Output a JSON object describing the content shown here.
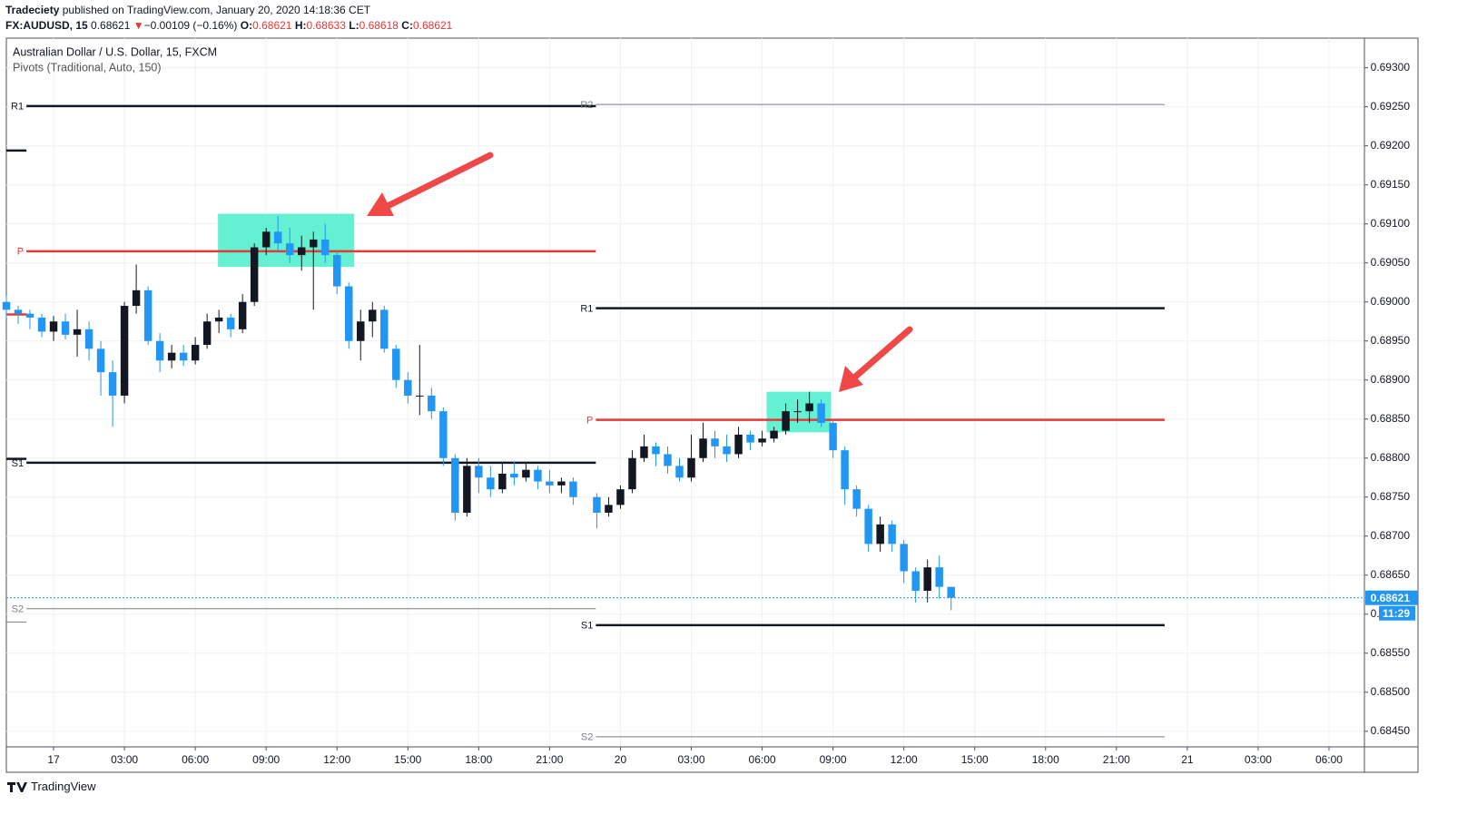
{
  "header": {
    "publisher": "Tradeciety",
    "published": "published on TradingView.com, January 20, 2020 14:18:36 CET",
    "symbol": "FX:AUDUSD, 15",
    "last": "0.68621",
    "arrow": "▼",
    "change": "−0.00109 (−0.16%)",
    "ohlc": [
      {
        "key": "O:",
        "value": "0.68621"
      },
      {
        "key": "H:",
        "value": "0.68633"
      },
      {
        "key": "L:",
        "value": "0.68618"
      },
      {
        "key": "C:",
        "value": "0.68621"
      }
    ]
  },
  "footer": {
    "brand": "TradingView"
  },
  "chart_data": {
    "type": "candlestick",
    "title": "Australian Dollar / U.S. Dollar, 15, FXCM",
    "subtitle": "Pivots (Traditional, Auto, 150)",
    "up_color": "#131722",
    "down_color": "#2196f3",
    "x": [
      -2,
      -1.5,
      -1,
      -0.5,
      0,
      0.5,
      1,
      1.5,
      2,
      2.5,
      3,
      3.5,
      4,
      4.5,
      5,
      5.5,
      6,
      6.5,
      7,
      7.5,
      8,
      8.5,
      9,
      9.5,
      10,
      10.5,
      11,
      11.5,
      12,
      12.5,
      13,
      13.5,
      14,
      14.5,
      15,
      15.5,
      16,
      16.5,
      17,
      17.5,
      18,
      18.5,
      19,
      19.5,
      20,
      20.5,
      21,
      21.5,
      22,
      23,
      23.5,
      24,
      24.5,
      25,
      25.5,
      26,
      26.5,
      27,
      27.5,
      28,
      28.5,
      29,
      29.5,
      30,
      30.5,
      31,
      31.5,
      32,
      32.5,
      33,
      33.5,
      34,
      34.5,
      35,
      35.5,
      36,
      36.5,
      37,
      37.5,
      38
    ],
    "open": [
      0.69,
      0.6899,
      0.68985,
      0.6898,
      0.68962,
      0.68975,
      0.68958,
      0.68965,
      0.6894,
      0.6891,
      0.6888,
      0.68995,
      0.69015,
      0.6895,
      0.68925,
      0.68935,
      0.68925,
      0.68945,
      0.68975,
      0.6898,
      0.68965,
      0.69,
      0.6907,
      0.6909,
      0.69075,
      0.6906,
      0.6907,
      0.6908,
      0.6906,
      0.6902,
      0.6895,
      0.68975,
      0.6899,
      0.6894,
      0.689,
      0.6888,
      0.6888,
      0.6886,
      0.688,
      0.6873,
      0.6879,
      0.68775,
      0.6876,
      0.6878,
      0.68775,
      0.68785,
      0.6877,
      0.68765,
      0.6877,
      0.6875,
      0.6873,
      0.6874,
      0.6876,
      0.688,
      0.68815,
      0.68805,
      0.6879,
      0.68775,
      0.688,
      0.68825,
      0.68815,
      0.68805,
      0.6883,
      0.6882,
      0.68825,
      0.68835,
      0.6886,
      0.6886,
      0.6887,
      0.68845,
      0.6881,
      0.6876,
      0.68735,
      0.6869,
      0.68715,
      0.6869,
      0.68655,
      0.6863,
      0.6866,
      0.68635
    ],
    "high": [
      0.69008,
      0.68995,
      0.6899,
      0.68985,
      0.68982,
      0.68985,
      0.6899,
      0.68975,
      0.6895,
      0.68925,
      0.69,
      0.69048,
      0.6902,
      0.6896,
      0.68945,
      0.68945,
      0.68955,
      0.68985,
      0.6899,
      0.68985,
      0.6901,
      0.69075,
      0.69095,
      0.6911,
      0.69095,
      0.69085,
      0.6909,
      0.691,
      0.69065,
      0.69025,
      0.6899,
      0.69,
      0.68995,
      0.68945,
      0.6891,
      0.68945,
      0.6889,
      0.68865,
      0.68805,
      0.688,
      0.688,
      0.6879,
      0.68795,
      0.68795,
      0.68795,
      0.6879,
      0.68785,
      0.68775,
      0.68775,
      0.68755,
      0.6875,
      0.68765,
      0.6881,
      0.6883,
      0.6882,
      0.68815,
      0.688,
      0.6883,
      0.68845,
      0.68835,
      0.6883,
      0.6884,
      0.68835,
      0.68835,
      0.6884,
      0.6887,
      0.68875,
      0.68885,
      0.68875,
      0.6885,
      0.68815,
      0.68765,
      0.6874,
      0.68725,
      0.6872,
      0.68695,
      0.6866,
      0.6867,
      0.68675,
      0.68633
    ],
    "low": [
      0.6898,
      0.68972,
      0.68965,
      0.68955,
      0.6895,
      0.68952,
      0.6893,
      0.68925,
      0.6888,
      0.6884,
      0.6887,
      0.68985,
      0.68945,
      0.6891,
      0.68915,
      0.68918,
      0.6892,
      0.6894,
      0.6896,
      0.68955,
      0.6896,
      0.68995,
      0.6906,
      0.69065,
      0.6905,
      0.6904,
      0.6899,
      0.6905,
      0.6901,
      0.6894,
      0.68925,
      0.68955,
      0.68935,
      0.6889,
      0.6887,
      0.68855,
      0.6885,
      0.6879,
      0.6872,
      0.68725,
      0.68755,
      0.6875,
      0.68755,
      0.68765,
      0.6877,
      0.6876,
      0.68755,
      0.68755,
      0.6874,
      0.6871,
      0.68725,
      0.68735,
      0.68755,
      0.68795,
      0.6879,
      0.6878,
      0.6877,
      0.6877,
      0.68795,
      0.688,
      0.68795,
      0.688,
      0.6881,
      0.68815,
      0.6882,
      0.6883,
      0.68845,
      0.68845,
      0.6884,
      0.688,
      0.6874,
      0.68725,
      0.6868,
      0.6868,
      0.6868,
      0.6864,
      0.68615,
      0.68615,
      0.6862,
      0.68605
    ],
    "close": [
      0.6899,
      0.68985,
      0.6898,
      0.68962,
      0.68975,
      0.68958,
      0.68965,
      0.6894,
      0.6891,
      0.6888,
      0.68995,
      0.69015,
      0.6895,
      0.68925,
      0.68935,
      0.68925,
      0.68945,
      0.68975,
      0.6898,
      0.68965,
      0.69,
      0.6907,
      0.6909,
      0.69075,
      0.6906,
      0.6907,
      0.6908,
      0.6906,
      0.6902,
      0.6895,
      0.68975,
      0.6899,
      0.6894,
      0.689,
      0.6888,
      0.6888,
      0.6886,
      0.688,
      0.6873,
      0.6879,
      0.68775,
      0.6876,
      0.6878,
      0.68775,
      0.68785,
      0.6877,
      0.68765,
      0.6877,
      0.6875,
      0.6873,
      0.6874,
      0.6876,
      0.688,
      0.68815,
      0.68805,
      0.6879,
      0.68775,
      0.688,
      0.68825,
      0.68815,
      0.68805,
      0.6883,
      0.6882,
      0.68825,
      0.68835,
      0.6886,
      0.6886,
      0.6887,
      0.68845,
      0.6881,
      0.6876,
      0.68735,
      0.6869,
      0.68715,
      0.6869,
      0.68655,
      0.6863,
      0.6866,
      0.68635,
      0.68621
    ],
    "xlim": [
      -2,
      55.5
    ],
    "xticks": [
      {
        "value": 0,
        "label": "17"
      },
      {
        "value": 3,
        "label": "03:00"
      },
      {
        "value": 6,
        "label": "06:00"
      },
      {
        "value": 9,
        "label": "09:00"
      },
      {
        "value": 12,
        "label": "12:00"
      },
      {
        "value": 15,
        "label": "15:00"
      },
      {
        "value": 18,
        "label": "18:00"
      },
      {
        "value": 21,
        "label": "21:00"
      },
      {
        "value": 24,
        "label": "20"
      },
      {
        "value": 27,
        "label": "03:00"
      },
      {
        "value": 30,
        "label": "06:00"
      },
      {
        "value": 33,
        "label": "09:00"
      },
      {
        "value": 36,
        "label": "12:00"
      },
      {
        "value": 39,
        "label": "15:00"
      },
      {
        "value": 42,
        "label": "18:00"
      },
      {
        "value": 45,
        "label": "21:00"
      },
      {
        "value": 48,
        "label": "21"
      },
      {
        "value": 51,
        "label": "03:00"
      },
      {
        "value": 54,
        "label": "06:00"
      }
    ],
    "ylim": [
      0.6843,
      0.69338
    ],
    "yticks": [
      {
        "value": 0.6845,
        "label": "0.68450"
      },
      {
        "value": 0.685,
        "label": "0.68500"
      },
      {
        "value": 0.6855,
        "label": "0.68550"
      },
      {
        "value": 0.686,
        "label": "0.68600"
      },
      {
        "value": 0.6865,
        "label": "0.68650"
      },
      {
        "value": 0.687,
        "label": "0.68700"
      },
      {
        "value": 0.6875,
        "label": "0.68750"
      },
      {
        "value": 0.688,
        "label": "0.68800"
      },
      {
        "value": 0.6885,
        "label": "0.68850"
      },
      {
        "value": 0.689,
        "label": "0.68900"
      },
      {
        "value": 0.6895,
        "label": "0.68950"
      },
      {
        "value": 0.69,
        "label": "0.69000"
      },
      {
        "value": 0.6905,
        "label": "0.69050"
      },
      {
        "value": 0.691,
        "label": "0.69100"
      },
      {
        "value": 0.6915,
        "label": "0.69150"
      },
      {
        "value": 0.692,
        "label": "0.69200"
      },
      {
        "value": 0.6925,
        "label": "0.69250"
      },
      {
        "value": 0.693,
        "label": "0.69300"
      }
    ],
    "grid": true,
    "pivots": [
      {
        "label": null,
        "value": 0.69194,
        "x": [
          -2,
          -1.15
        ],
        "color": "#131722",
        "width": 2.5
      },
      {
        "label": null,
        "value": 0.68984,
        "x": [
          -2,
          -1.15
        ],
        "color": "#e53935",
        "width": 2.5
      },
      {
        "label": null,
        "value": 0.68799,
        "x": [
          -2,
          -1.15
        ],
        "color": "#131722",
        "width": 2.5
      },
      {
        "label": null,
        "value": 0.6859,
        "x": [
          -2,
          -1.15
        ],
        "color": "#787b86",
        "width": 1
      },
      {
        "label": "R1",
        "value": 0.69251,
        "x": [
          -1.15,
          22.96
        ],
        "color": "#131722",
        "width": 2.5
      },
      {
        "label": "P",
        "value": 0.69065,
        "x": [
          -1.15,
          22.96
        ],
        "color": "#e53935",
        "width": 2.5
      },
      {
        "label": "S1",
        "value": 0.68794,
        "x": [
          -1.15,
          22.96
        ],
        "color": "#131722",
        "width": 2.5
      },
      {
        "label": "S2",
        "value": 0.68607,
        "x": [
          -1.15,
          22.96
        ],
        "color": "#787b86",
        "width": 1
      },
      {
        "label": "R2",
        "value": 0.69253,
        "x": [
          22.96,
          47.04
        ],
        "color": "#787b86",
        "width": 1
      },
      {
        "label": "R1",
        "value": 0.68992,
        "x": [
          22.96,
          47.04
        ],
        "color": "#131722",
        "width": 2.5
      },
      {
        "label": "P",
        "value": 0.68849,
        "x": [
          22.96,
          47.04
        ],
        "color": "#e53935",
        "width": 2.5
      },
      {
        "label": "S1",
        "value": 0.68586,
        "x": [
          22.96,
          47.04
        ],
        "color": "#131722",
        "width": 2.5
      },
      {
        "label": "S2",
        "value": 0.68443,
        "x": [
          22.96,
          47.04
        ],
        "color": "#787b86",
        "width": 1
      }
    ],
    "highlights": [
      {
        "x": [
          6.96,
          12.73
        ],
        "y": [
          0.69045,
          0.69113
        ],
        "color": "#64f0d2"
      },
      {
        "x": [
          30.19,
          32.92
        ],
        "y": [
          0.68833,
          0.68885
        ],
        "color": "#64f0d2"
      }
    ],
    "last_price": 0.68621,
    "last_price_color": "#2196f3",
    "countdown": "11:29"
  }
}
